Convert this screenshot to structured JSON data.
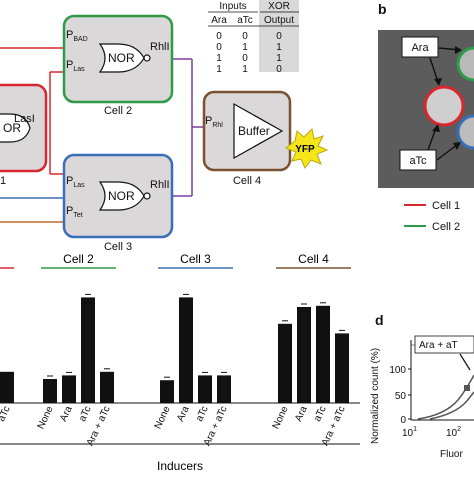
{
  "panels": {
    "b": "b",
    "d": "d"
  },
  "cells": {
    "cell1": {
      "label": "Cell 1",
      "truncated_label": "1",
      "gate": "OR",
      "promoter_out": "LasI"
    },
    "cell2": {
      "label": "Cell 2",
      "gate": "NOR",
      "in1": "P",
      "in1_sub": "BAD",
      "in2": "P",
      "in2_sub": "Las",
      "out": "RhlI"
    },
    "cell3": {
      "label": "Cell 3",
      "gate": "NOR",
      "in1": "P",
      "in1_sub": "Las",
      "in2": "P",
      "in2_sub": "Tet",
      "out": "RhlI"
    },
    "cell4": {
      "label": "Cell 4",
      "gate": "Buffer",
      "in": "P",
      "in_sub": "Rhl",
      "out": "YFP"
    }
  },
  "truth_table": {
    "group1": "Inputs",
    "group2": "XOR",
    "headers": [
      "Ara",
      "aTc",
      "Output"
    ],
    "rows": [
      [
        "0",
        "0",
        "0"
      ],
      [
        "0",
        "1",
        "1"
      ],
      [
        "1",
        "0",
        "1"
      ],
      [
        "1",
        "1",
        "0"
      ]
    ]
  },
  "plate": {
    "inducer1": "Ara",
    "inducer2": "aTc"
  },
  "legend": [
    {
      "name": "Cell 1",
      "color": "#d8282f"
    },
    {
      "name": "Cell 2",
      "truncated": "Cell 2",
      "color": "#2e9b48"
    }
  ],
  "colors": {
    "cell1": "#d8282f",
    "cell2": "#2e9b48",
    "cell3": "#3a6fb7",
    "cell4": "#7a5230",
    "fill": "#dad8d8",
    "yfp": "#f5e61a"
  },
  "chart_data": {
    "type": "bar",
    "group_labels": [
      "Cell 2",
      "Cell 3",
      "Cell 4"
    ],
    "group_colors": [
      "#2e9b48",
      "#3a6fb7",
      "#7a5230"
    ],
    "categories": [
      "None",
      "Ara",
      "aTc",
      "Ara + aTc"
    ],
    "xlabel": "Inducers",
    "truncated_category": "aTc",
    "cell1_visible_last_value": 0.26,
    "series": [
      {
        "values": [
          0.2,
          0.23,
          0.88,
          0.26
        ]
      },
      {
        "values": [
          0.19,
          0.88,
          0.23,
          0.23
        ]
      },
      {
        "values": [
          0.66,
          0.8,
          0.81,
          0.58
        ]
      }
    ],
    "ylim": [
      0,
      1
    ]
  },
  "chart_d": {
    "type": "line",
    "ylabel": "Normalized count (%)",
    "yticks": [
      "0",
      "50",
      "100"
    ],
    "xticks": [
      "10",
      "10"
    ],
    "xtick_exponents": [
      "1",
      "2"
    ],
    "xlabel_truncated": "Fluor",
    "annotation": "Ara + aT",
    "ylim": [
      0,
      100
    ]
  }
}
